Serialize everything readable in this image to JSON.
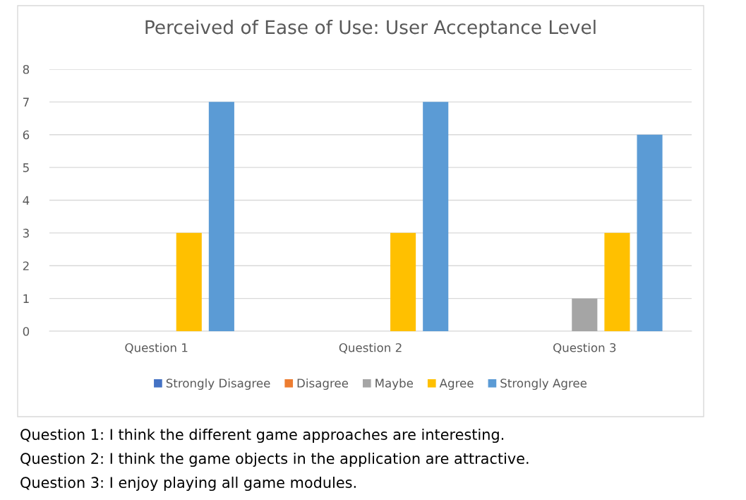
{
  "chart_data": {
    "type": "bar",
    "title": "Perceived of Ease of Use: User Acceptance Level",
    "categories": [
      "Question 1",
      "Question 2",
      "Question 3"
    ],
    "series": [
      {
        "name": "Strongly Disagree",
        "color": "#4472c4",
        "values": [
          0,
          0,
          0
        ]
      },
      {
        "name": "Disagree",
        "color": "#ed7d31",
        "values": [
          0,
          0,
          0
        ]
      },
      {
        "name": "Maybe",
        "color": "#a5a5a5",
        "values": [
          0,
          0,
          1
        ]
      },
      {
        "name": "Agree",
        "color": "#ffc000",
        "values": [
          3,
          3,
          3
        ]
      },
      {
        "name": "Strongly Agree",
        "color": "#5b9bd5",
        "values": [
          7,
          7,
          6
        ]
      }
    ],
    "ylim": [
      0,
      8
    ],
    "yticks": [
      0,
      1,
      2,
      3,
      4,
      5,
      6,
      7,
      8
    ],
    "grid": "y",
    "legend": "bottom",
    "annotations": [
      "Question 1: I think the different game approaches are interesting.",
      "Question 2: I think the game objects in the application are attractive.",
      "Question 3: I enjoy playing all game modules."
    ]
  }
}
